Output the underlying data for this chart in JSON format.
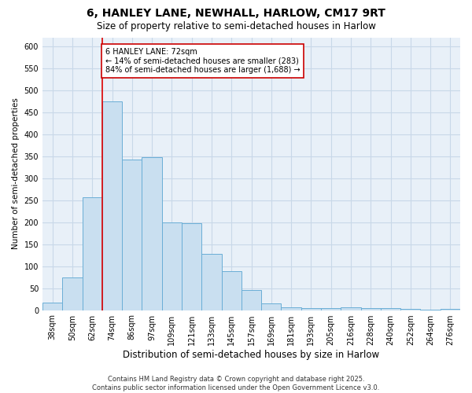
{
  "title": "6, HANLEY LANE, NEWHALL, HARLOW, CM17 9RT",
  "subtitle": "Size of property relative to semi-detached houses in Harlow",
  "xlabel": "Distribution of semi-detached houses by size in Harlow",
  "ylabel": "Number of semi-detached properties",
  "footer_line1": "Contains HM Land Registry data © Crown copyright and database right 2025.",
  "footer_line2": "Contains public sector information licensed under the Open Government Licence v3.0.",
  "categories": [
    "38sqm",
    "50sqm",
    "62sqm",
    "74sqm",
    "86sqm",
    "97sqm",
    "109sqm",
    "121sqm",
    "133sqm",
    "145sqm",
    "157sqm",
    "169sqm",
    "181sqm",
    "193sqm",
    "205sqm",
    "216sqm",
    "228sqm",
    "240sqm",
    "252sqm",
    "264sqm",
    "276sqm"
  ],
  "values": [
    18,
    75,
    257,
    475,
    342,
    348,
    200,
    197,
    128,
    88,
    46,
    15,
    7,
    5,
    4,
    7,
    4,
    4,
    2,
    1,
    2
  ],
  "bar_color": "#c9dff0",
  "bar_edge_color": "#6aaed6",
  "bar_edge_width": 0.7,
  "grid_color": "#c8d8e8",
  "bg_color": "#e8f0f8",
  "red_line_color": "#dd0000",
  "annotation_text": "6 HANLEY LANE: 72sqm\n← 14% of semi-detached houses are smaller (283)\n84% of semi-detached houses are larger (1,688) →",
  "annotation_box_color": "#cc0000",
  "red_line_index": 3,
  "ylim": [
    0,
    620
  ],
  "yticks": [
    0,
    50,
    100,
    150,
    200,
    250,
    300,
    350,
    400,
    450,
    500,
    550,
    600
  ],
  "title_fontsize": 10,
  "subtitle_fontsize": 8.5,
  "xlabel_fontsize": 8.5,
  "ylabel_fontsize": 7.5,
  "tick_fontsize": 7,
  "annotation_fontsize": 7,
  "footer_fontsize": 6
}
